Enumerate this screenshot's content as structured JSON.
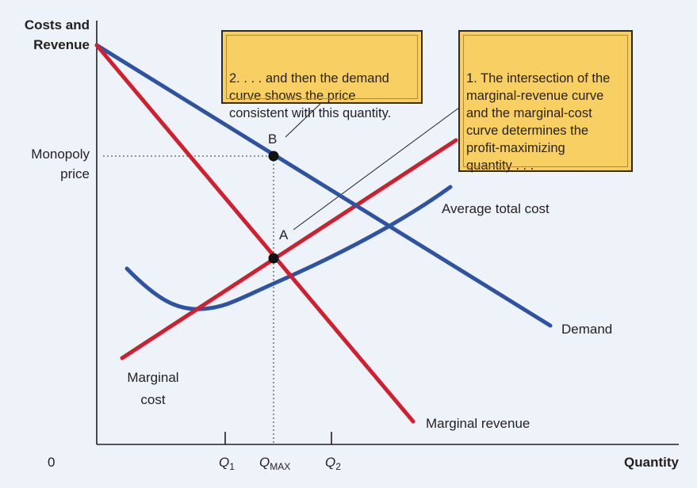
{
  "axes": {
    "y_title_line1": "Costs and",
    "y_title_line2": "Revenue",
    "x_title": "Quantity",
    "origin": "0"
  },
  "y_ticks": {
    "monopoly_price_line1": "Monopoly",
    "monopoly_price_line2": "price"
  },
  "x_ticks": {
    "q1_base": "Q",
    "q1_sub": "1",
    "qmax_base": "Q",
    "qmax_sub": "MAX",
    "q2_base": "Q",
    "q2_sub": "2"
  },
  "points": {
    "a": "A",
    "b": "B"
  },
  "curves": {
    "demand": "Demand",
    "marginal_revenue": "Marginal revenue",
    "average_total_cost": "Average total cost",
    "marginal_cost_line1": "Marginal",
    "marginal_cost_line2": "cost"
  },
  "notes": {
    "note2": "2. . . . and then the demand\ncurve shows the price\nconsistent with this quantity.",
    "note1": "1. The intersection of the\nmarginal-revenue curve\nand the marginal-cost\ncurve determines the\nprofit-maximizing\nquantity . . ."
  },
  "colors": {
    "demand": "#2f53a3",
    "average_total_cost": "#2f53a3",
    "marginal_revenue": "#d0202f",
    "marginal_cost": "#d0202f",
    "callout": "#f7cf63",
    "background": "#eef3fa"
  }
}
